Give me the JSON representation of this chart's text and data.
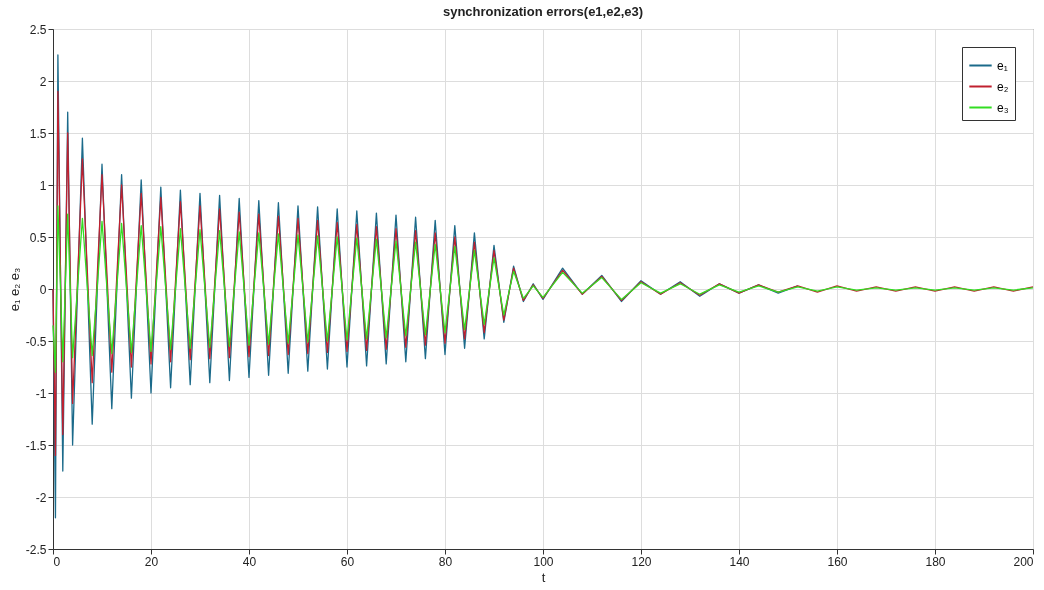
{
  "chart_data": {
    "type": "line",
    "title": "synchronization errors(e1,e2,e3)",
    "xlabel": "t",
    "ylabel": "e₁  e₂  e₃",
    "x": [
      0,
      0.5,
      1,
      2,
      3,
      4,
      6,
      8,
      10,
      12,
      14,
      16,
      18,
      20,
      22,
      24,
      26,
      28,
      30,
      32,
      34,
      36,
      38,
      40,
      42,
      44,
      46,
      48,
      50,
      52,
      54,
      56,
      58,
      60,
      62,
      64,
      66,
      68,
      70,
      72,
      74,
      76,
      78,
      80,
      82,
      84,
      86,
      88,
      90,
      92,
      94,
      96,
      98,
      100,
      104,
      108,
      112,
      116,
      120,
      124,
      128,
      132,
      136,
      140,
      144,
      148,
      152,
      156,
      160,
      164,
      168,
      172,
      176,
      180,
      184,
      188,
      192,
      196,
      200
    ],
    "series": [
      {
        "name": "e₁",
        "color": "#1b6a8a",
        "values": [
          0,
          -2.2,
          2.25,
          -1.75,
          1.7,
          -1.5,
          1.45,
          -1.3,
          1.2,
          -1.15,
          1.1,
          -1.05,
          1.05,
          -1.0,
          0.98,
          -0.95,
          0.95,
          -0.92,
          0.92,
          -0.9,
          0.9,
          -0.88,
          0.87,
          -0.85,
          0.85,
          -0.83,
          0.83,
          -0.81,
          0.8,
          -0.79,
          0.79,
          -0.77,
          0.77,
          -0.75,
          0.75,
          -0.74,
          0.73,
          -0.72,
          0.71,
          -0.7,
          0.69,
          -0.67,
          0.66,
          -0.63,
          0.61,
          -0.57,
          0.54,
          -0.48,
          0.42,
          -0.32,
          0.22,
          -0.12,
          0.05,
          -0.1,
          0.2,
          -0.05,
          0.13,
          -0.12,
          0.08,
          -0.05,
          0.07,
          -0.07,
          0.05,
          -0.04,
          0.04,
          -0.04,
          0.03,
          null,
          null,
          null,
          null,
          null,
          null,
          null,
          null,
          null,
          null,
          null,
          null
        ]
      },
      {
        "name": "e₂",
        "color": "#c0202f",
        "values": [
          0,
          -1.6,
          1.9,
          -1.4,
          1.5,
          -1.1,
          1.25,
          -0.9,
          1.1,
          -0.8,
          1.0,
          -0.75,
          0.92,
          -0.72,
          0.88,
          -0.7,
          0.84,
          -0.68,
          0.8,
          -0.67,
          0.77,
          -0.66,
          0.74,
          -0.65,
          0.72,
          -0.64,
          0.7,
          -0.63,
          0.68,
          -0.62,
          0.66,
          -0.61,
          0.64,
          -0.6,
          0.62,
          -0.59,
          0.6,
          -0.58,
          0.58,
          -0.56,
          0.56,
          -0.54,
          0.54,
          -0.52,
          0.5,
          -0.48,
          0.45,
          -0.42,
          0.37,
          -0.3,
          0.2,
          -0.11,
          0.04,
          -0.09,
          0.18,
          -0.05,
          0.12,
          -0.11,
          0.07,
          -0.05,
          0.06,
          -0.06,
          0.05,
          -0.04,
          0.04,
          -0.03,
          0.03,
          -0.03,
          0.03,
          -0.02,
          0.02,
          -0.02,
          0.02,
          -0.02,
          0.02,
          -0.02,
          0.02,
          -0.02,
          0.02
        ]
      },
      {
        "name": "e₃",
        "color": "#33dd22",
        "values": [
          -0.35,
          -0.8,
          0.8,
          -0.7,
          0.72,
          -0.66,
          0.68,
          -0.64,
          0.65,
          -0.62,
          0.63,
          -0.61,
          0.61,
          -0.6,
          0.6,
          -0.58,
          0.58,
          -0.57,
          0.57,
          -0.56,
          0.56,
          -0.55,
          0.55,
          -0.54,
          0.54,
          -0.53,
          0.53,
          -0.52,
          0.52,
          -0.51,
          0.51,
          -0.5,
          0.5,
          -0.49,
          0.49,
          -0.48,
          0.48,
          -0.47,
          0.46,
          -0.45,
          0.45,
          -0.44,
          0.43,
          -0.42,
          0.41,
          -0.39,
          0.37,
          -0.34,
          0.3,
          -0.25,
          0.17,
          -0.09,
          0.03,
          -0.08,
          0.16,
          -0.04,
          0.11,
          -0.1,
          0.06,
          -0.04,
          0.05,
          -0.05,
          0.04,
          -0.03,
          0.03,
          -0.03,
          0.02,
          -0.02,
          0.02,
          -0.01,
          0.01,
          -0.01,
          0.01,
          -0.01,
          0.01,
          -0.01,
          0.01,
          -0.01,
          0.01
        ]
      }
    ],
    "xlim": [
      0,
      200
    ],
    "xticks": [
      0,
      20,
      40,
      60,
      80,
      100,
      120,
      140,
      160,
      180,
      200
    ],
    "ylim": [
      -2.5,
      2.5
    ],
    "yticks": [
      -2.5,
      -2,
      -1.5,
      -1,
      -0.5,
      0,
      0.5,
      1,
      1.5,
      2,
      2.5
    ],
    "grid": true,
    "legend": "top right",
    "line_style": "solid"
  }
}
